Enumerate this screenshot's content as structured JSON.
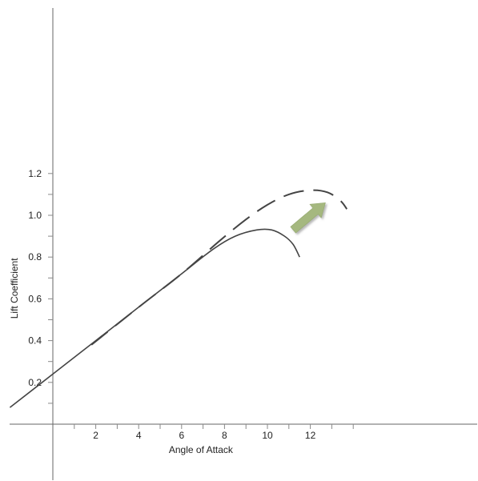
{
  "chart_data": {
    "type": "line",
    "title": "",
    "xlabel": "Angle of Attack",
    "ylabel": "Lift Coefficient",
    "xlim": [
      -2,
      14
    ],
    "ylim": [
      0,
      1.3
    ],
    "x_ticks": [
      {
        "value": 2,
        "label": "2"
      },
      {
        "value": 4,
        "label": "4"
      },
      {
        "value": 6,
        "label": "6"
      },
      {
        "value": 8,
        "label": "8"
      },
      {
        "value": 10,
        "label": "10"
      },
      {
        "value": 12,
        "label": "12"
      }
    ],
    "y_ticks": [
      {
        "value": 0.2,
        "label": "0.2"
      },
      {
        "value": 0.4,
        "label": "0.4"
      },
      {
        "value": 0.6,
        "label": "0.6"
      },
      {
        "value": 0.8,
        "label": "0.8"
      },
      {
        "value": 1.0,
        "label": "1.0"
      },
      {
        "value": 1.2,
        "label": "1.2"
      }
    ],
    "grid": false,
    "legend": "none",
    "series": [
      {
        "style": "solid",
        "color": "#444444",
        "x": [
          -2,
          0,
          2,
          4,
          6,
          7.5,
          8.5,
          9.5,
          10.2,
          10.8,
          11.2,
          11.5
        ],
        "y": [
          0.08,
          0.24,
          0.4,
          0.56,
          0.72,
          0.84,
          0.9,
          0.93,
          0.93,
          0.9,
          0.86,
          0.8
        ]
      },
      {
        "style": "dashed",
        "color": "#444444",
        "x": [
          1.8,
          4,
          6,
          7.8,
          9,
          10,
          11,
          12,
          12.8,
          13.4,
          13.7
        ],
        "y": [
          0.38,
          0.56,
          0.72,
          0.88,
          0.98,
          1.05,
          1.1,
          1.12,
          1.11,
          1.07,
          1.03
        ]
      }
    ],
    "annotation": {
      "type": "arrow",
      "color": "#a5b87f",
      "from": {
        "x": 11.2,
        "y": 0.93
      },
      "to": {
        "x": 12.7,
        "y": 1.06
      }
    }
  }
}
